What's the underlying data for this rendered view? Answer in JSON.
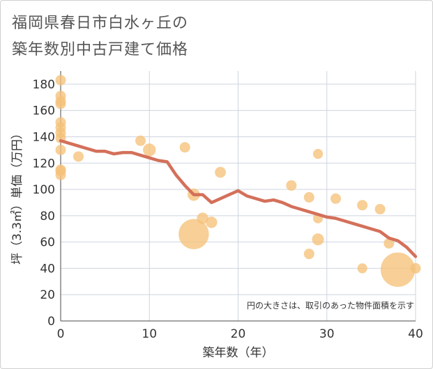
{
  "title_lines": [
    "福岡県春日市白水ヶ丘の",
    "築年数別中古戸建て価格"
  ],
  "chart_data": {
    "type": "scatter+line",
    "xlabel": "築年数（年）",
    "ylabel": "坪（3.3㎡）単価（万円）",
    "xlim": [
      0,
      40
    ],
    "ylim": [
      0,
      190
    ],
    "xticks": [
      0,
      10,
      20,
      30,
      40
    ],
    "yticks": [
      0,
      20,
      40,
      60,
      80,
      100,
      120,
      140,
      160,
      180
    ],
    "grid": true,
    "note": "円の大きさは、取引のあった物件面積を示す",
    "bubble_color": "#f5c27a",
    "line_color": "#d4705a",
    "bubbles": [
      {
        "x": 0,
        "y": 183,
        "s": 1
      },
      {
        "x": 0,
        "y": 171,
        "s": 1
      },
      {
        "x": 0,
        "y": 167,
        "s": 1
      },
      {
        "x": 0,
        "y": 165,
        "s": 1
      },
      {
        "x": 0,
        "y": 151,
        "s": 1
      },
      {
        "x": 0,
        "y": 147,
        "s": 1
      },
      {
        "x": 0,
        "y": 143,
        "s": 1
      },
      {
        "x": 0,
        "y": 139,
        "s": 1
      },
      {
        "x": 0,
        "y": 130,
        "s": 1
      },
      {
        "x": 0,
        "y": 115,
        "s": 1
      },
      {
        "x": 0,
        "y": 114,
        "s": 1
      },
      {
        "x": 0,
        "y": 111,
        "s": 1
      },
      {
        "x": 2,
        "y": 125,
        "s": 1
      },
      {
        "x": 9,
        "y": 137,
        "s": 1
      },
      {
        "x": 10,
        "y": 130,
        "s": 1.5
      },
      {
        "x": 14,
        "y": 132,
        "s": 1
      },
      {
        "x": 15,
        "y": 96,
        "s": 1.4
      },
      {
        "x": 15,
        "y": 66,
        "s": 3.5
      },
      {
        "x": 16,
        "y": 78,
        "s": 1.2
      },
      {
        "x": 17,
        "y": 75,
        "s": 1.2
      },
      {
        "x": 18,
        "y": 113,
        "s": 1.1
      },
      {
        "x": 26,
        "y": 103,
        "s": 1
      },
      {
        "x": 28,
        "y": 94,
        "s": 1
      },
      {
        "x": 28,
        "y": 51,
        "s": 1
      },
      {
        "x": 29,
        "y": 127,
        "s": 0.9
      },
      {
        "x": 29,
        "y": 78,
        "s": 0.9
      },
      {
        "x": 29,
        "y": 62,
        "s": 1.3
      },
      {
        "x": 31,
        "y": 93,
        "s": 1
      },
      {
        "x": 34,
        "y": 88,
        "s": 1
      },
      {
        "x": 34,
        "y": 40,
        "s": 0.9
      },
      {
        "x": 36,
        "y": 85,
        "s": 1
      },
      {
        "x": 37,
        "y": 59,
        "s": 1
      },
      {
        "x": 38,
        "y": 39,
        "s": 4.5
      },
      {
        "x": 40,
        "y": 40,
        "s": 1
      }
    ],
    "line": {
      "x": [
        0,
        1,
        2,
        3,
        4,
        5,
        6,
        7,
        8,
        9,
        10,
        11,
        12,
        13,
        14,
        15,
        16,
        17,
        18,
        19,
        20,
        21,
        22,
        23,
        24,
        25,
        26,
        27,
        28,
        29,
        30,
        31,
        32,
        33,
        34,
        35,
        36,
        37,
        38,
        39,
        40
      ],
      "y": [
        137,
        135,
        133,
        131,
        129,
        129,
        127,
        128,
        128,
        126,
        124,
        122,
        121,
        111,
        103,
        96,
        96,
        90,
        93,
        96,
        99,
        95,
        93,
        91,
        92,
        90,
        87,
        85,
        83,
        81,
        79,
        78,
        76,
        74,
        72,
        70,
        68,
        63,
        61,
        56,
        49
      ]
    }
  }
}
